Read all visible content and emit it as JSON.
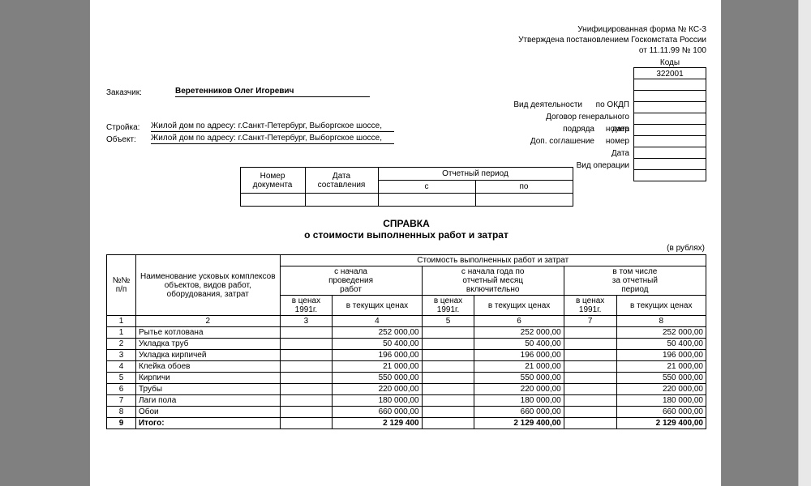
{
  "header": {
    "form_line": "Унифицированная форма № КС-3",
    "approved_line": "Утверждена постановлением Госкомстата России",
    "date_line": "от 11.11.99 № 100"
  },
  "codes": {
    "label": "Коды",
    "okud": "322001"
  },
  "left_info": {
    "customer_label": "Заказчик:",
    "customer_value": "Веретенников Олег Игоревич",
    "site_label": "Стройка:",
    "site_value": "Жилой дом по адресу: г.Санкт-Петербург, Выборгское шоссе,",
    "object_label": "Объект:",
    "object_value": "Жилой дом по адресу: г.Санкт-Петербург, Выборгское шоссе,"
  },
  "code_labels": {
    "activity": "Вид деятельности",
    "okdp": "по ОКДП",
    "contract": "Договор генерального подряда",
    "number": "номер",
    "date": "дата",
    "supp": "Доп. соглашение",
    "number2": "номер",
    "date2": "Дата",
    "operation": "Вид операции"
  },
  "meta_table": {
    "h_docnum": "Номер\nдокумента",
    "h_date": "Дата\nсоставления",
    "h_period": "Отчетный период",
    "h_from": "с",
    "h_to": "по"
  },
  "title": "СПРАВКА",
  "subtitle": "о стоимости выполненных работ и затрат",
  "currency": "(в рублях)",
  "main_header": {
    "col_np": "№№\nп/п",
    "col_name": "Наименование усковых комплексов объектов, видов работ, оборудования, затрат",
    "group_cost": "Стоимость выполненных работ и затрат",
    "group_start": "с начала\nпроведения\nработ",
    "group_year": "с начала года по\nотчетный месяц\nвключительно",
    "group_period": "в том числе\nза отчетный\nпериод",
    "sub_1991": "в ценах\n1991г.",
    "sub_current": "в текущих ценах"
  },
  "colnums": [
    "1",
    "2",
    "3",
    "4",
    "5",
    "6",
    "7",
    "8"
  ],
  "rows": [
    {
      "n": "1",
      "name": "Рытье котлована",
      "c1": "",
      "c2": "252 000,00",
      "c3": "",
      "c4": "252 000,00",
      "c5": "",
      "c6": "252 000,00"
    },
    {
      "n": "2",
      "name": "Укладка труб",
      "c1": "",
      "c2": "50 400,00",
      "c3": "",
      "c4": "50 400,00",
      "c5": "",
      "c6": "50 400,00"
    },
    {
      "n": "3",
      "name": "Укладка кирпичей",
      "c1": "",
      "c2": "196 000,00",
      "c3": "",
      "c4": "196 000,00",
      "c5": "",
      "c6": "196 000,00"
    },
    {
      "n": "4",
      "name": "Клейка обоев",
      "c1": "",
      "c2": "21 000,00",
      "c3": "",
      "c4": "21 000,00",
      "c5": "",
      "c6": "21 000,00"
    },
    {
      "n": "5",
      "name": "Кирпичи",
      "c1": "",
      "c2": "550 000,00",
      "c3": "",
      "c4": "550 000,00",
      "c5": "",
      "c6": "550 000,00"
    },
    {
      "n": "6",
      "name": "Трубы",
      "c1": "",
      "c2": "220 000,00",
      "c3": "",
      "c4": "220 000,00",
      "c5": "",
      "c6": "220 000,00"
    },
    {
      "n": "7",
      "name": "Лаги пола",
      "c1": "",
      "c2": "180 000,00",
      "c3": "",
      "c4": "180 000,00",
      "c5": "",
      "c6": "180 000,00"
    },
    {
      "n": "8",
      "name": "Обои",
      "c1": "",
      "c2": "660 000,00",
      "c3": "",
      "c4": "660 000,00",
      "c5": "",
      "c6": "660 000,00"
    }
  ],
  "total": {
    "n": "9",
    "name": "Итого:",
    "c1": "",
    "c2": "2 129 400",
    "c3": "",
    "c4": "2 129 400,00",
    "c5": "",
    "c6": "2 129 400,00"
  },
  "col_widths": {
    "np": "30px",
    "name": "150px",
    "c": "60px",
    "c_wide": "92px"
  }
}
